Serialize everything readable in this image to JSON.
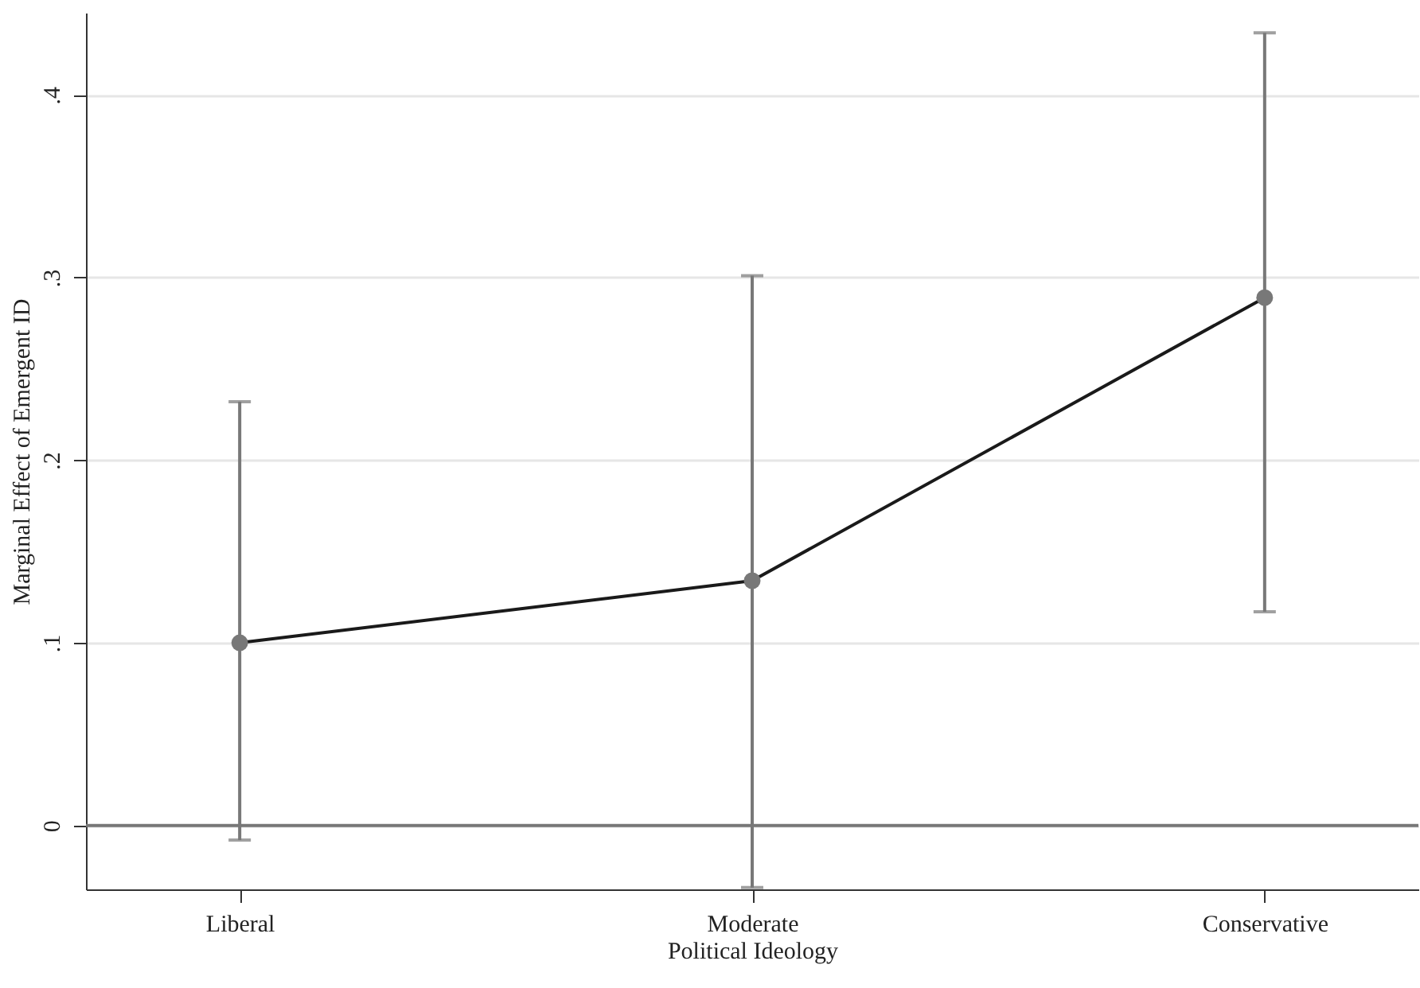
{
  "chart_data": {
    "type": "line",
    "xlabel": "Political Ideology",
    "ylabel": "Marginal Effect of Emergent ID",
    "categories": [
      "Liberal",
      "Moderate",
      "Conservative"
    ],
    "series": [
      {
        "color": "#787878",
        "values": [
          0.1,
          0.134,
          0.289
        ],
        "errors": [
          [
            -0.008,
            0.232
          ],
          [
            -0.034,
            0.301
          ],
          [
            0.117,
            0.434
          ]
        ]
      }
    ],
    "ylim": [
      -0.035,
      0.445
    ],
    "yticks": [
      0,
      {
        "value": 0.1,
        "label": ".1"
      },
      {
        "value": 0.2,
        "label": ".2"
      },
      {
        "value": 0.3,
        "label": ".3"
      },
      {
        "value": 0.4,
        "label": ".4"
      }
    ],
    "grid": "y",
    "marker": "circle",
    "line_style": "solid",
    "ref_lines": [
      {
        "axis": "y",
        "value": 0,
        "color": "#777777"
      }
    ]
  }
}
